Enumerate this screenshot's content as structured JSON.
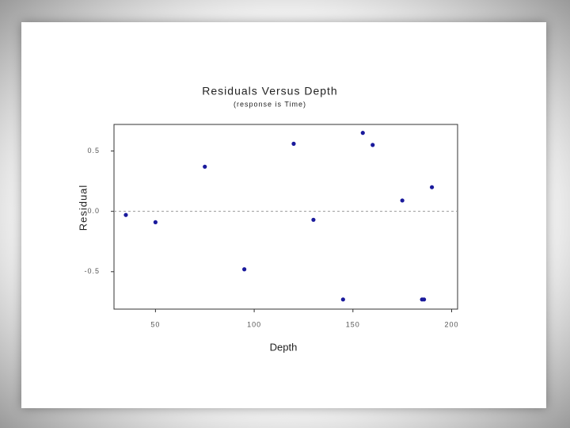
{
  "chart_data": {
    "type": "scatter",
    "title": "Residuals Versus Depth",
    "subtitle": "(response is Time)",
    "x_label": "Depth",
    "y_label": "Residual",
    "x": [
      35,
      50,
      75,
      95,
      120,
      130,
      145,
      155,
      160,
      175,
      185,
      186,
      190
    ],
    "values": [
      -0.03,
      -0.09,
      0.37,
      -0.48,
      0.56,
      -0.07,
      -0.73,
      0.65,
      0.55,
      0.09,
      -0.73,
      -0.73,
      0.2
    ],
    "color": "#1a1a9c",
    "xlim": [
      29,
      203
    ],
    "xticks": [
      50,
      100,
      150,
      200
    ],
    "ylim": [
      -0.81,
      0.72
    ],
    "yticks": [
      0.5,
      {
        "value": 0,
        "label": "0.0"
      },
      -0.5
    ],
    "reference_line": 0
  }
}
